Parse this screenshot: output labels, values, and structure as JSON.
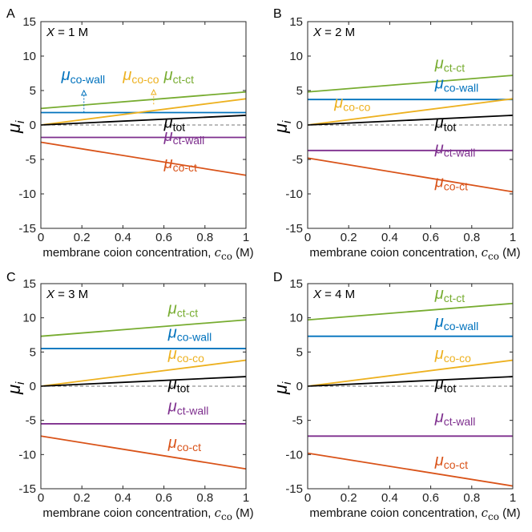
{
  "figure": {
    "x_axis_label_prefix": "membrane coion concentration, ",
    "x_axis_label_symbol": "c",
    "x_axis_label_subscript": "co",
    "x_axis_label_suffix": " (M)",
    "y_axis_label_symbol": "μ",
    "y_axis_label_subscript": "i",
    "mu_symbol": "μ"
  },
  "colors": {
    "co-wall": "#0072BD",
    "co-co": "#EDB120",
    "ct-ct": "#77AC30",
    "tot": "#000000",
    "ct-wall": "#7E2F8E",
    "co-ct": "#D95319",
    "zero-line": "#777777"
  },
  "chart_data": [
    {
      "type": "line",
      "panel": "A",
      "title_var": "X",
      "title_rest": " = 1 M",
      "x": [
        0,
        1
      ],
      "xlim": [
        0,
        1
      ],
      "ylim": [
        -15,
        15
      ],
      "xticks": [
        "0",
        "0.2",
        "0.4",
        "0.6",
        "0.8",
        "1"
      ],
      "yticks": [
        "-15",
        "-10",
        "-5",
        "0",
        "5",
        "10",
        "15"
      ],
      "series": [
        {
          "key": "ct-ct",
          "label_sub": "ct-ct",
          "values": [
            2.4,
            4.8
          ]
        },
        {
          "key": "co-wall",
          "label_sub": "co-wall",
          "values": [
            1.8,
            1.8
          ]
        },
        {
          "key": "co-co",
          "label_sub": "co-co",
          "values": [
            0,
            3.8
          ]
        },
        {
          "key": "tot",
          "label_sub": "tot",
          "values": [
            0,
            1.4
          ]
        },
        {
          "key": "ct-wall",
          "label_sub": "ct-wall",
          "values": [
            -1.8,
            -1.8
          ]
        },
        {
          "key": "co-ct",
          "label_sub": "co-ct",
          "values": [
            -2.5,
            -7.3
          ]
        }
      ]
    },
    {
      "type": "line",
      "panel": "B",
      "title_var": "X",
      "title_rest": " = 2 M",
      "x": [
        0,
        1
      ],
      "xlim": [
        0,
        1
      ],
      "ylim": [
        -15,
        15
      ],
      "xticks": [
        "0",
        "0.2",
        "0.4",
        "0.6",
        "0.8",
        "1"
      ],
      "yticks": [
        "-15",
        "-10",
        "-5",
        "0",
        "5",
        "10",
        "15"
      ],
      "series": [
        {
          "key": "ct-ct",
          "label_sub": "ct-ct",
          "values": [
            4.8,
            7.2
          ]
        },
        {
          "key": "co-wall",
          "label_sub": "co-wall",
          "values": [
            3.7,
            3.7
          ]
        },
        {
          "key": "co-co",
          "label_sub": "co-co",
          "values": [
            0,
            3.8
          ]
        },
        {
          "key": "tot",
          "label_sub": "tot",
          "values": [
            0,
            1.4
          ]
        },
        {
          "key": "ct-wall",
          "label_sub": "ct-wall",
          "values": [
            -3.7,
            -3.7
          ]
        },
        {
          "key": "co-ct",
          "label_sub": "co-ct",
          "values": [
            -4.8,
            -9.7
          ]
        }
      ]
    },
    {
      "type": "line",
      "panel": "C",
      "title_var": "X",
      "title_rest": " = 3 M",
      "x": [
        0,
        1
      ],
      "xlim": [
        0,
        1
      ],
      "ylim": [
        -15,
        15
      ],
      "xticks": [
        "0",
        "0.2",
        "0.4",
        "0.6",
        "0.8",
        "1"
      ],
      "yticks": [
        "-15",
        "-10",
        "-5",
        "0",
        "5",
        "10",
        "15"
      ],
      "series": [
        {
          "key": "ct-ct",
          "label_sub": "ct-ct",
          "values": [
            7.3,
            9.7
          ]
        },
        {
          "key": "co-wall",
          "label_sub": "co-wall",
          "values": [
            5.5,
            5.5
          ]
        },
        {
          "key": "co-co",
          "label_sub": "co-co",
          "values": [
            0,
            3.8
          ]
        },
        {
          "key": "tot",
          "label_sub": "tot",
          "values": [
            0,
            1.4
          ]
        },
        {
          "key": "ct-wall",
          "label_sub": "ct-wall",
          "values": [
            -5.5,
            -5.5
          ]
        },
        {
          "key": "co-ct",
          "label_sub": "co-ct",
          "values": [
            -7.3,
            -12.1
          ]
        }
      ]
    },
    {
      "type": "line",
      "panel": "D",
      "title_var": "X",
      "title_rest": " = 4 M",
      "x": [
        0,
        1
      ],
      "xlim": [
        0,
        1
      ],
      "ylim": [
        -15,
        15
      ],
      "xticks": [
        "0",
        "0.2",
        "0.4",
        "0.6",
        "0.8",
        "1"
      ],
      "yticks": [
        "-15",
        "-10",
        "-5",
        "0",
        "5",
        "10",
        "15"
      ],
      "series": [
        {
          "key": "ct-ct",
          "label_sub": "ct-ct",
          "values": [
            9.7,
            12.1
          ]
        },
        {
          "key": "co-wall",
          "label_sub": "co-wall",
          "values": [
            7.3,
            7.3
          ]
        },
        {
          "key": "co-co",
          "label_sub": "co-co",
          "values": [
            0,
            3.8
          ]
        },
        {
          "key": "tot",
          "label_sub": "tot",
          "values": [
            0,
            1.4
          ]
        },
        {
          "key": "ct-wall",
          "label_sub": "ct-wall",
          "values": [
            -7.3,
            -7.3
          ]
        },
        {
          "key": "co-ct",
          "label_sub": "co-ct",
          "values": [
            -9.8,
            -14.6
          ]
        }
      ]
    }
  ]
}
